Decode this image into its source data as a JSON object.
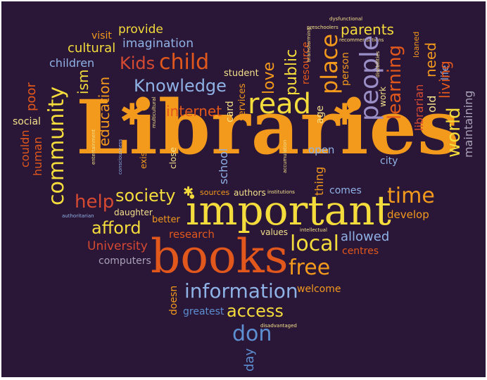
{
  "colors": {
    "background": "#2a1636",
    "orange": "#f39a1d",
    "dark_orange": "#e2581c",
    "yellow": "#f4dc3c",
    "light_yellow": "#f3e08a",
    "blue": "#5d8fd3",
    "light_blue": "#8fb2e6",
    "red": "#d64a32",
    "gray": "#a9a2b8",
    "lavender": "#9b8fc8"
  },
  "words": {
    "libraries": "Libraries",
    "important": "important",
    "books": "books",
    "community": "community",
    "read": "read",
    "information": "information",
    "people": "people",
    "place": "place",
    "learning": "learning",
    "knowledge": "Knowledge",
    "kids": "Kids",
    "child": "child",
    "local": "local",
    "free": "free",
    "don": "don",
    "access": "access",
    "afford": "afford",
    "society": "society",
    "help": "help",
    "time": "time",
    "world": "world",
    "education": "education",
    "university": "University",
    "internet": "internet",
    "imagination": "imagination",
    "provide": "provide",
    "cultural": "cultural",
    "children": "children",
    "visit": "visit",
    "parents": "parents",
    "public": "public",
    "love": "love",
    "student": "student",
    "card": "card",
    "services": "services",
    "age": "age",
    "resource": "resource",
    "person": "person",
    "work": "work",
    "librarian": "librarian",
    "old": "old",
    "need": "need",
    "living": "living",
    "life": "life",
    "loaned": "loaned",
    "maintaining": "maintaining",
    "ism": "ism",
    "poor": "poor",
    "social": "social",
    "couldn": "couldn",
    "human": "human",
    "existence": "existence",
    "close": "close",
    "school": "school",
    "open": "open",
    "thing": "thing",
    "city": "city",
    "comes": "comes",
    "develop": "develop",
    "sources": "sources",
    "authors": "authors",
    "institutions": "institutions",
    "daughter": "daughter",
    "better": "better",
    "research": "research",
    "values": "values",
    "intellectual": "intellectual",
    "allowed": "allowed",
    "centres": "centres",
    "computers": "computers",
    "doesn": "doesn",
    "welcome": "welcome",
    "greatest": "greatest",
    "day": "day",
    "disadvantaged": "disadvantaged",
    "dysfunctional": "dysfunctional",
    "preschoolers": "preschoolers",
    "brainstorming": "brainstorming",
    "recommendations": "recommendations",
    "disabilities": "disabilities",
    "multicultural": "multicultural",
    "entertainment": "entertainment",
    "consciousness": "consciousness",
    "accumulation": "accumulation",
    "authoritarian": "authoritarian"
  }
}
